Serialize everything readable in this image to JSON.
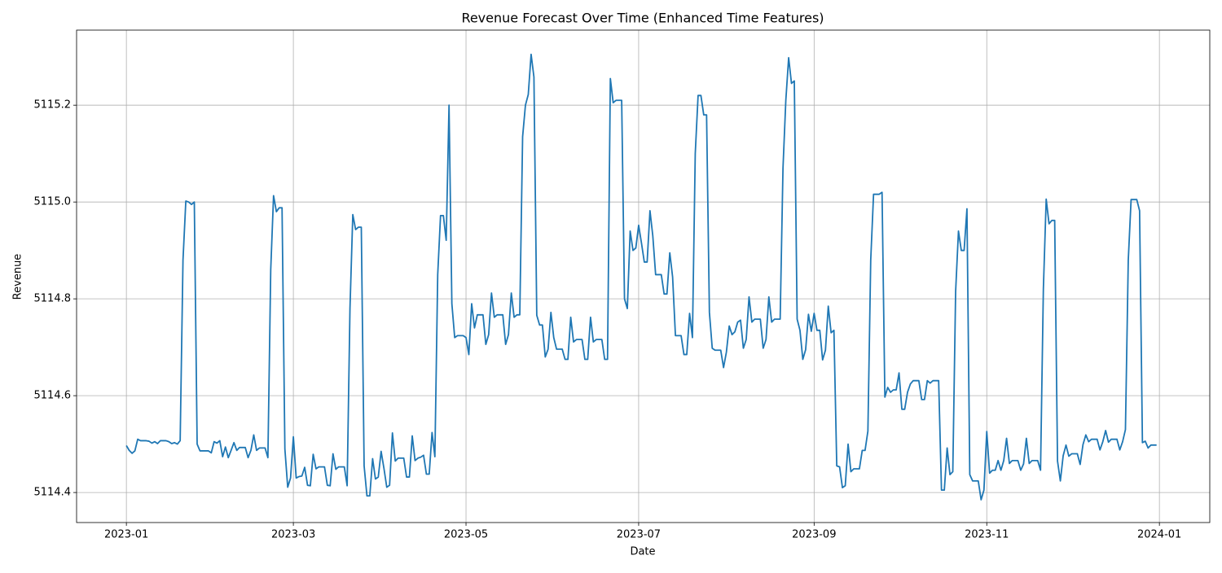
{
  "chart_data": {
    "type": "line",
    "title": "Revenue Forecast Over Time (Enhanced Time Features)",
    "x_label": "Date",
    "y_label": "Revenue",
    "color": "#1f77b4",
    "grid": true,
    "xlim": [
      -17.6,
      382.8
    ],
    "xticks": [
      {
        "value": 0,
        "label": "2023-01"
      },
      {
        "value": 59,
        "label": "2023-03"
      },
      {
        "value": 120,
        "label": "2023-05"
      },
      {
        "value": 181,
        "label": "2023-07"
      },
      {
        "value": 243,
        "label": "2023-09"
      },
      {
        "value": 304,
        "label": "2023-11"
      },
      {
        "value": 365,
        "label": "2024-01"
      }
    ],
    "ylim": [
      5114.338,
      5115.355
    ],
    "yticks": [
      5114.4,
      5114.6,
      5114.8,
      {
        "value": 5115,
        "label": "5115.0"
      },
      5115.2
    ],
    "x": [
      0,
      1,
      2,
      3,
      4,
      5,
      6,
      7,
      8,
      9,
      10,
      11,
      12,
      13,
      14,
      15,
      16,
      17,
      18,
      19,
      20,
      21,
      22,
      23,
      24,
      25,
      26,
      27,
      28,
      29,
      30,
      31,
      32,
      33,
      34,
      35,
      36,
      37,
      38,
      39,
      40,
      41,
      42,
      43,
      44,
      45,
      46,
      47,
      48,
      49,
      50,
      51,
      52,
      53,
      54,
      55,
      56,
      57,
      58,
      59,
      60,
      61,
      62,
      63,
      64,
      65,
      66,
      67,
      68,
      69,
      70,
      71,
      72,
      73,
      74,
      75,
      76,
      77,
      78,
      79,
      80,
      81,
      82,
      83,
      84,
      85,
      86,
      87,
      88,
      89,
      90,
      91,
      92,
      93,
      94,
      95,
      96,
      97,
      98,
      99,
      100,
      101,
      102,
      103,
      104,
      105,
      106,
      107,
      108,
      109,
      110,
      111,
      112,
      113,
      114,
      115,
      116,
      117,
      118,
      119,
      120,
      121,
      122,
      123,
      124,
      125,
      126,
      127,
      128,
      129,
      130,
      131,
      132,
      133,
      134,
      135,
      136,
      137,
      138,
      139,
      140,
      141,
      142,
      143,
      144,
      145,
      146,
      147,
      148,
      149,
      150,
      151,
      152,
      153,
      154,
      155,
      156,
      157,
      158,
      159,
      160,
      161,
      162,
      163,
      164,
      165,
      166,
      167,
      168,
      169,
      170,
      171,
      172,
      173,
      174,
      175,
      176,
      177,
      178,
      179,
      180,
      181,
      182,
      183,
      184,
      185,
      186,
      187,
      188,
      189,
      190,
      191,
      192,
      193,
      194,
      195,
      196,
      197,
      198,
      199,
      200,
      201,
      202,
      203,
      204,
      205,
      206,
      207,
      208,
      209,
      210,
      211,
      212,
      213,
      214,
      215,
      216,
      217,
      218,
      219,
      220,
      221,
      222,
      223,
      224,
      225,
      226,
      227,
      228,
      229,
      230,
      231,
      232,
      233,
      234,
      235,
      236,
      237,
      238,
      239,
      240,
      241,
      242,
      243,
      244,
      245,
      246,
      247,
      248,
      249,
      250,
      251,
      252,
      253,
      254,
      255,
      256,
      257,
      258,
      259,
      260,
      261,
      262,
      263,
      264,
      265,
      266,
      267,
      268,
      269,
      270,
      271,
      272,
      273,
      274,
      275,
      276,
      277,
      278,
      279,
      280,
      281,
      282,
      283,
      284,
      285,
      286,
      287,
      288,
      289,
      290,
      291,
      292,
      293,
      294,
      295,
      296,
      297,
      298,
      299,
      300,
      301,
      302,
      303,
      304,
      305,
      306,
      307,
      308,
      309,
      310,
      311,
      312,
      313,
      314,
      315,
      316,
      317,
      318,
      319,
      320,
      321,
      322,
      323,
      324,
      325,
      326,
      327,
      328,
      329,
      330,
      331,
      332,
      333,
      334,
      335,
      336,
      337,
      338,
      339,
      340,
      341,
      342,
      343,
      344,
      345,
      346,
      347,
      348,
      349,
      350,
      351,
      352,
      353,
      354,
      355,
      356,
      357,
      358,
      359,
      360,
      361,
      362,
      363,
      364
    ],
    "values": [
      5114.497,
      5114.487,
      5114.481,
      5114.486,
      5114.51,
      5114.507,
      5114.507,
      5114.507,
      5114.506,
      5114.502,
      5114.505,
      5114.501,
      5114.507,
      5114.507,
      5114.507,
      5114.505,
      5114.501,
      5114.503,
      5114.5,
      5114.507,
      5114.88,
      5115.002,
      5115.0,
      5114.995,
      5115.0,
      5114.5,
      5114.486,
      5114.486,
      5114.486,
      5114.486,
      5114.482,
      5114.505,
      5114.502,
      5114.507,
      5114.474,
      5114.494,
      5114.472,
      5114.487,
      5114.503,
      5114.487,
      5114.493,
      5114.493,
      5114.493,
      5114.472,
      5114.487,
      5114.519,
      5114.487,
      5114.492,
      5114.492,
      5114.492,
      5114.472,
      5114.86,
      5115.013,
      5114.98,
      5114.988,
      5114.988,
      5114.49,
      5114.411,
      5114.43,
      5114.515,
      5114.43,
      5114.433,
      5114.434,
      5114.452,
      5114.415,
      5114.414,
      5114.479,
      5114.449,
      5114.453,
      5114.453,
      5114.453,
      5114.415,
      5114.414,
      5114.48,
      5114.448,
      5114.453,
      5114.453,
      5114.453,
      5114.414,
      5114.78,
      5114.974,
      5114.943,
      5114.948,
      5114.948,
      5114.455,
      5114.393,
      5114.393,
      5114.47,
      5114.428,
      5114.432,
      5114.485,
      5114.45,
      5114.411,
      5114.415,
      5114.523,
      5114.465,
      5114.471,
      5114.471,
      5114.471,
      5114.432,
      5114.432,
      5114.517,
      5114.466,
      5114.471,
      5114.473,
      5114.477,
      5114.438,
      5114.438,
      5114.524,
      5114.474,
      5114.85,
      5114.972,
      5114.972,
      5114.921,
      5115.2,
      5114.79,
      5114.72,
      5114.724,
      5114.724,
      5114.724,
      5114.72,
      5114.685,
      5114.79,
      5114.74,
      5114.767,
      5114.767,
      5114.767,
      5114.706,
      5114.726,
      5114.812,
      5114.762,
      5114.767,
      5114.767,
      5114.767,
      5114.706,
      5114.726,
      5114.812,
      5114.762,
      5114.767,
      5114.767,
      5115.135,
      5115.2,
      5115.222,
      5115.305,
      5115.258,
      5114.766,
      5114.746,
      5114.746,
      5114.68,
      5114.696,
      5114.772,
      5114.72,
      5114.696,
      5114.696,
      5114.696,
      5114.675,
      5114.675,
      5114.762,
      5114.711,
      5114.716,
      5114.716,
      5114.716,
      5114.675,
      5114.675,
      5114.762,
      5114.711,
      5114.716,
      5114.716,
      5114.716,
      5114.675,
      5114.675,
      5115.255,
      5115.205,
      5115.21,
      5115.21,
      5115.21,
      5114.8,
      5114.78,
      5114.94,
      5114.9,
      5114.905,
      5114.952,
      5114.915,
      5114.876,
      5114.876,
      5114.982,
      5114.93,
      5114.85,
      5114.85,
      5114.85,
      5114.81,
      5114.81,
      5114.895,
      5114.845,
      5114.724,
      5114.724,
      5114.724,
      5114.685,
      5114.685,
      5114.77,
      5114.72,
      5115.1,
      5115.22,
      5115.22,
      5115.18,
      5115.18,
      5114.772,
      5114.698,
      5114.694,
      5114.694,
      5114.694,
      5114.658,
      5114.69,
      5114.744,
      5114.726,
      5114.732,
      5114.752,
      5114.756,
      5114.698,
      5114.716,
      5114.804,
      5114.752,
      5114.758,
      5114.758,
      5114.758,
      5114.698,
      5114.716,
      5114.804,
      5114.752,
      5114.758,
      5114.758,
      5114.758,
      5115.07,
      5115.21,
      5115.298,
      5115.245,
      5115.25,
      5114.758,
      5114.735,
      5114.675,
      5114.695,
      5114.768,
      5114.733,
      5114.77,
      5114.735,
      5114.735,
      5114.674,
      5114.694,
      5114.785,
      5114.73,
      5114.735,
      5114.455,
      5114.453,
      5114.41,
      5114.414,
      5114.5,
      5114.443,
      5114.449,
      5114.449,
      5114.449,
      5114.487,
      5114.487,
      5114.527,
      5114.88,
      5115.016,
      5115.016,
      5115.016,
      5115.02,
      5114.597,
      5114.617,
      5114.607,
      5114.612,
      5114.612,
      5114.647,
      5114.572,
      5114.572,
      5114.607,
      5114.624,
      5114.631,
      5114.631,
      5114.631,
      5114.592,
      5114.592,
      5114.631,
      5114.626,
      5114.631,
      5114.631,
      5114.631,
      5114.405,
      5114.405,
      5114.492,
      5114.437,
      5114.443,
      5114.815,
      5114.94,
      5114.9,
      5114.9,
      5114.986,
      5114.437,
      5114.424,
      5114.424,
      5114.424,
      5114.385,
      5114.405,
      5114.526,
      5114.44,
      5114.446,
      5114.446,
      5114.466,
      5114.446,
      5114.466,
      5114.512,
      5114.46,
      5114.466,
      5114.466,
      5114.466,
      5114.446,
      5114.459,
      5114.512,
      5114.46,
      5114.466,
      5114.466,
      5114.466,
      5114.446,
      5114.82,
      5115.006,
      5114.955,
      5114.962,
      5114.962,
      5114.465,
      5114.424,
      5114.476,
      5114.498,
      5114.475,
      5114.48,
      5114.48,
      5114.48,
      5114.458,
      5114.499,
      5114.519,
      5114.505,
      5114.51,
      5114.51,
      5114.51,
      5114.488,
      5114.505,
      5114.528,
      5114.504,
      5114.51,
      5114.51,
      5114.51,
      5114.488,
      5114.505,
      5114.53,
      5114.88,
      5115.005,
      5115.005,
      5115.005,
      5114.982,
      5114.503,
      5114.506,
      5114.492,
      5114.498,
      5114.498,
      5114.498
    ]
  }
}
